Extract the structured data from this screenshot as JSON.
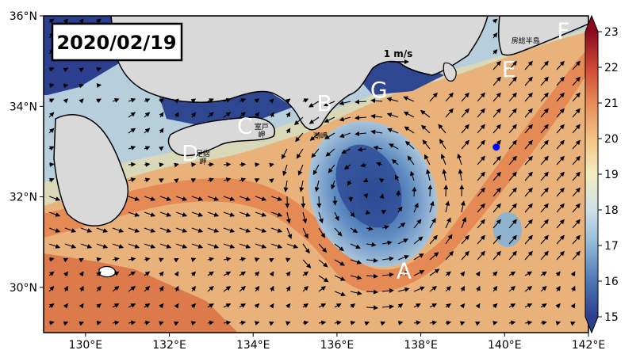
{
  "map": {
    "date": "2020/02/19",
    "lon_ticks": [
      "130°E",
      "132°E",
      "134°E",
      "136°E",
      "138°E",
      "140°E",
      "142°E"
    ],
    "lat_ticks": [
      "36°N",
      "34°N",
      "32°N",
      "30°N"
    ],
    "scale_label": "1 m/s",
    "site_labels": [
      {
        "text": "A",
        "lon": 137.6,
        "lat": 30.2
      },
      {
        "text": "B",
        "lon": 135.7,
        "lat": 33.9
      },
      {
        "text": "C",
        "lon": 133.8,
        "lat": 33.4
      },
      {
        "text": "D",
        "lon": 132.5,
        "lat": 32.8
      },
      {
        "text": "E",
        "lon": 140.1,
        "lat": 34.65
      },
      {
        "text": "F",
        "lon": 141.4,
        "lat": 35.5
      },
      {
        "text": "G",
        "lon": 137.0,
        "lat": 34.2
      }
    ],
    "place_labels": [
      {
        "text": "足摺\n岬",
        "lon": 132.8,
        "lat": 32.9
      },
      {
        "text": "室戸\n岬",
        "lon": 134.2,
        "lat": 33.5
      },
      {
        "text": "潮岬",
        "lon": 135.6,
        "lat": 33.3
      },
      {
        "text": "房総半島",
        "lon": 140.5,
        "lat": 35.4
      }
    ],
    "marker": {
      "lon": 139.8,
      "lat": 33.1,
      "color": "#0000ff"
    }
  },
  "colorbar": {
    "ticks": [
      "23",
      "22",
      "21",
      "20",
      "19",
      "18",
      "17",
      "16",
      "15"
    ],
    "vmin": 15,
    "vmax": 23,
    "colors": [
      "#2c3f8f",
      "#4a74b4",
      "#8fb6d6",
      "#cde0e8",
      "#f3edc0",
      "#f4c685",
      "#e88b57",
      "#cf4a36",
      "#8b0a1e"
    ]
  }
}
